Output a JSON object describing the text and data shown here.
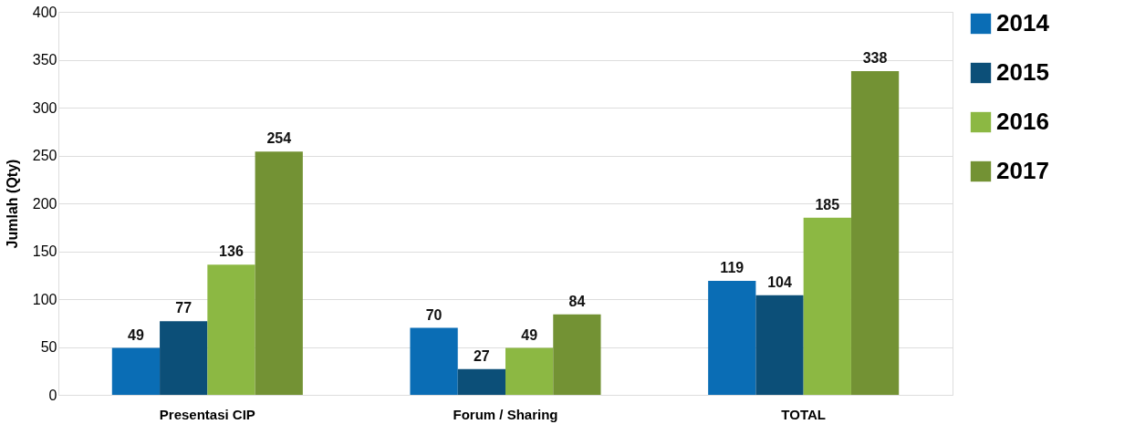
{
  "chart_data": {
    "type": "bar",
    "ylabel": "Jumlah (Qty)",
    "categories": [
      "Presentasi CIP",
      "Forum / Sharing",
      "TOTAL"
    ],
    "series": [
      {
        "name": "2014",
        "color": "#0a6db5",
        "values": [
          49,
          70,
          119
        ]
      },
      {
        "name": "2015",
        "color": "#0c4f78",
        "values": [
          77,
          27,
          104
        ]
      },
      {
        "name": "2016",
        "color": "#8cb843",
        "values": [
          136,
          49,
          185
        ]
      },
      {
        "name": "2017",
        "color": "#739234",
        "values": [
          254,
          84,
          338
        ]
      }
    ],
    "ylim": [
      0,
      400
    ],
    "yticks": [
      0,
      50,
      100,
      150,
      200,
      250,
      300,
      350,
      400
    ],
    "grid": "y",
    "legend": "right",
    "data_labels": true
  }
}
